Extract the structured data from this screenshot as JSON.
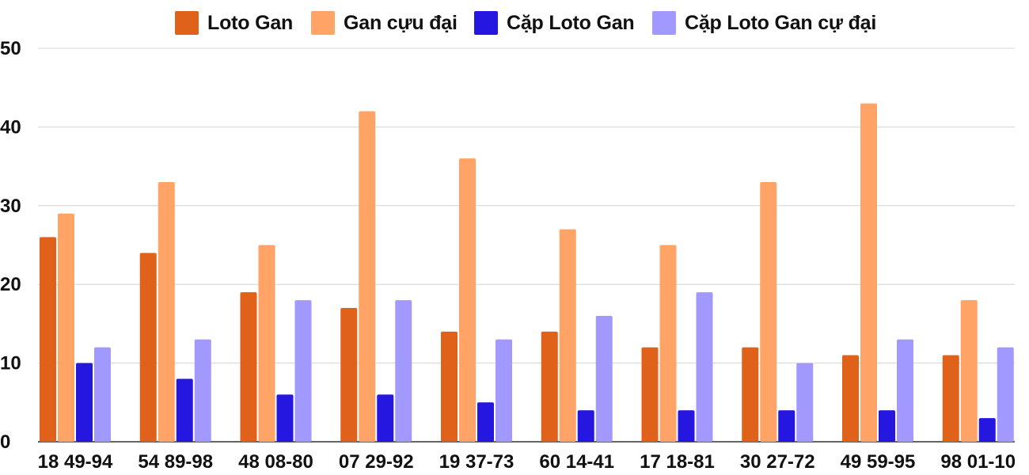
{
  "chart_data": {
    "type": "bar",
    "title": "",
    "xlabel": "",
    "ylabel": "",
    "ylim": [
      0,
      50
    ],
    "yticks": [
      0,
      10,
      20,
      30,
      40,
      50
    ],
    "grid": true,
    "legend_position": "top",
    "categories": [
      "18 49-94",
      "54 89-98",
      "48 08-80",
      "07 29-92",
      "19 37-73",
      "60 14-41",
      "17 18-81",
      "30 27-72",
      "49 59-95",
      "98 01-10"
    ],
    "series": [
      {
        "name": "Loto Gan",
        "color": "#E0611A",
        "values": [
          26,
          24,
          19,
          17,
          14,
          14,
          12,
          12,
          11,
          11
        ]
      },
      {
        "name": "Gan cựu đại",
        "color": "#FFA366",
        "values": [
          29,
          33,
          25,
          42,
          36,
          27,
          25,
          33,
          43,
          18
        ]
      },
      {
        "name": "Cặp Loto Gan",
        "color": "#2617E0",
        "values": [
          10,
          8,
          6,
          6,
          5,
          4,
          4,
          4,
          4,
          3
        ]
      },
      {
        "name": "Cặp Loto Gan cự đại",
        "color": "#A299FF",
        "values": [
          12,
          13,
          18,
          18,
          13,
          16,
          19,
          10,
          13,
          12
        ]
      }
    ]
  }
}
